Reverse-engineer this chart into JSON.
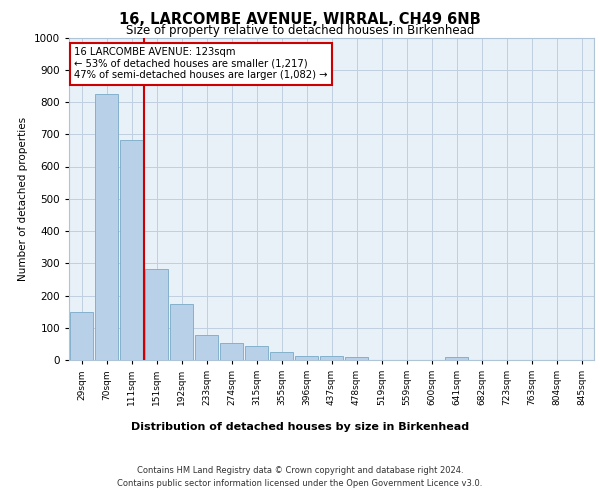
{
  "title1": "16, LARCOMBE AVENUE, WIRRAL, CH49 6NB",
  "title2": "Size of property relative to detached houses in Birkenhead",
  "xlabel": "Distribution of detached houses by size in Birkenhead",
  "ylabel": "Number of detached properties",
  "categories": [
    "29sqm",
    "70sqm",
    "111sqm",
    "151sqm",
    "192sqm",
    "233sqm",
    "274sqm",
    "315sqm",
    "355sqm",
    "396sqm",
    "437sqm",
    "478sqm",
    "519sqm",
    "559sqm",
    "600sqm",
    "641sqm",
    "682sqm",
    "723sqm",
    "763sqm",
    "804sqm",
    "845sqm"
  ],
  "values": [
    150,
    825,
    682,
    282,
    175,
    78,
    52,
    44,
    24,
    12,
    11,
    10,
    0,
    0,
    0,
    10,
    0,
    0,
    0,
    0,
    0
  ],
  "bar_color": "#b8d0e8",
  "bar_edge_color": "#7aaac8",
  "redline_color": "#cc0000",
  "annotation_text": "16 LARCOMBE AVENUE: 123sqm\n← 53% of detached houses are smaller (1,217)\n47% of semi-detached houses are larger (1,082) →",
  "annotation_box_color": "#ffffff",
  "annotation_box_edge": "#cc0000",
  "footer1": "Contains HM Land Registry data © Crown copyright and database right 2024.",
  "footer2": "Contains public sector information licensed under the Open Government Licence v3.0.",
  "background_color": "#e8f0f8",
  "ylim": [
    0,
    1000
  ],
  "yticks": [
    0,
    100,
    200,
    300,
    400,
    500,
    600,
    700,
    800,
    900,
    1000
  ]
}
